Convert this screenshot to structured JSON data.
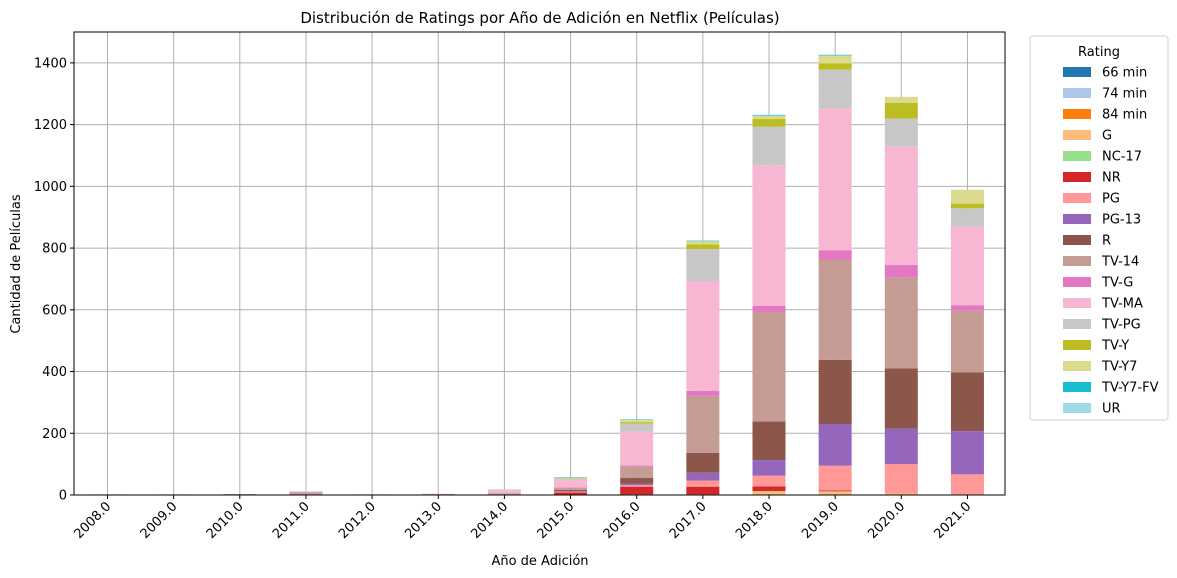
{
  "chart_data": {
    "type": "bar",
    "stacked": true,
    "title": "Distribución de Ratings por Año de Adición en Netflix (Películas)",
    "xlabel": "Año de Adición",
    "ylabel": "Cantidad de Películas",
    "ylim": [
      0,
      1500
    ],
    "yticks": [
      0,
      200,
      400,
      600,
      800,
      1000,
      1200,
      1400
    ],
    "grid": true,
    "legend_title": "Rating",
    "legend_placement": "outside-right",
    "categories": [
      "2008.0",
      "2009.0",
      "2010.0",
      "2011.0",
      "2012.0",
      "2013.0",
      "2014.0",
      "2015.0",
      "2016.0",
      "2017.0",
      "2018.0",
      "2019.0",
      "2020.0",
      "2021.0"
    ],
    "series": [
      {
        "name": "66 min",
        "color": "#1f77b4",
        "values": [
          0,
          0,
          0,
          0,
          0,
          0,
          0,
          0,
          0,
          0,
          0,
          0,
          0,
          0
        ]
      },
      {
        "name": "74 min",
        "color": "#aec7e8",
        "values": [
          0,
          0,
          0,
          0,
          0,
          0,
          0,
          0,
          0,
          0,
          0,
          0,
          0,
          0
        ]
      },
      {
        "name": "84 min",
        "color": "#ff7f0e",
        "values": [
          0,
          0,
          0,
          0,
          0,
          0,
          0,
          0,
          0,
          0,
          0,
          1,
          0,
          0
        ]
      },
      {
        "name": "G",
        "color": "#ffbb78",
        "values": [
          0,
          0,
          0,
          0,
          0,
          0,
          0,
          1,
          2,
          2,
          12,
          10,
          5,
          2
        ]
      },
      {
        "name": "NC-17",
        "color": "#98df8a",
        "values": [
          0,
          0,
          0,
          0,
          0,
          0,
          0,
          0,
          0,
          0,
          1,
          1,
          0,
          0
        ]
      },
      {
        "name": "NR",
        "color": "#d62728",
        "values": [
          0,
          0,
          1,
          0,
          1,
          1,
          0,
          7,
          25,
          25,
          15,
          3,
          0,
          0
        ]
      },
      {
        "name": "PG",
        "color": "#ff9896",
        "values": [
          0,
          0,
          0,
          0,
          0,
          0,
          1,
          3,
          5,
          20,
          35,
          80,
          95,
          65
        ]
      },
      {
        "name": "PG-13",
        "color": "#9467bd",
        "values": [
          0,
          0,
          0,
          0,
          0,
          0,
          0,
          2,
          5,
          25,
          50,
          135,
          115,
          140
        ]
      },
      {
        "name": "R",
        "color": "#8c564b",
        "values": [
          1,
          1,
          1,
          1,
          0,
          1,
          1,
          4,
          18,
          65,
          125,
          208,
          195,
          190
        ]
      },
      {
        "name": "TV-14",
        "color": "#c49c94",
        "values": [
          1,
          1,
          1,
          7,
          1,
          1,
          4,
          6,
          38,
          185,
          355,
          325,
          295,
          200
        ]
      },
      {
        "name": "TV-G",
        "color": "#e377c2",
        "values": [
          0,
          0,
          0,
          1,
          0,
          0,
          0,
          2,
          3,
          15,
          20,
          30,
          40,
          17
        ]
      },
      {
        "name": "TV-MA",
        "color": "#f7b6d2",
        "values": [
          0,
          0,
          0,
          2,
          0,
          1,
          10,
          25,
          110,
          355,
          455,
          460,
          385,
          255
        ]
      },
      {
        "name": "TV-PG",
        "color": "#c7c7c7",
        "values": [
          0,
          0,
          0,
          1,
          0,
          0,
          2,
          3,
          25,
          105,
          125,
          125,
          90,
          60
        ]
      },
      {
        "name": "TV-Y",
        "color": "#bcbd22",
        "values": [
          0,
          0,
          0,
          0,
          0,
          0,
          0,
          1,
          5,
          15,
          25,
          20,
          50,
          15
        ]
      },
      {
        "name": "TV-Y7",
        "color": "#dbdb8d",
        "values": [
          0,
          0,
          0,
          0,
          0,
          0,
          0,
          2,
          8,
          10,
          10,
          25,
          20,
          45
        ]
      },
      {
        "name": "TV-Y7-FV",
        "color": "#17becf",
        "values": [
          0,
          0,
          0,
          0,
          0,
          0,
          0,
          1,
          1,
          2,
          2,
          2,
          0,
          0
        ]
      },
      {
        "name": "UR",
        "color": "#9edae5",
        "values": [
          0,
          0,
          0,
          0,
          0,
          0,
          0,
          0,
          0,
          1,
          2,
          2,
          0,
          0
        ]
      }
    ]
  }
}
